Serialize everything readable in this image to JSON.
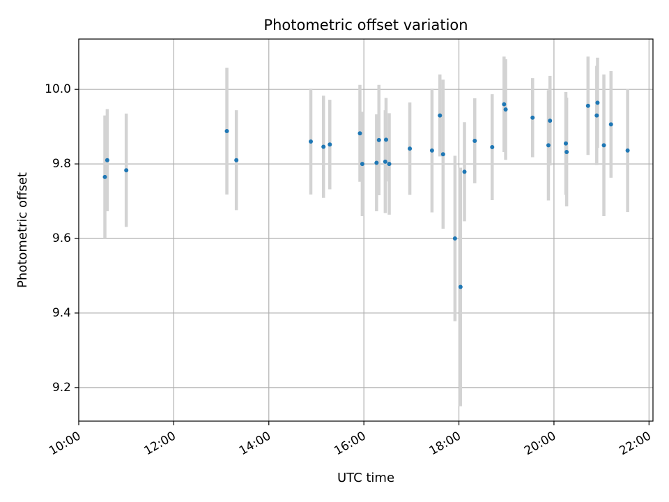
{
  "chart_data": {
    "type": "scatter",
    "title": "Photometric offset variation",
    "xlabel": "UTC time",
    "ylabel": "Photometric offset",
    "x_ticks": [
      "10:00",
      "12:00",
      "14:00",
      "16:00",
      "18:00",
      "20:00",
      "22:00"
    ],
    "y_ticks": [
      "9.2",
      "9.4",
      "9.6",
      "9.8",
      "10.0"
    ],
    "xlim": [
      "10:00",
      "22:05"
    ],
    "ylim": [
      9.11,
      10.135
    ],
    "grid": true,
    "colors": {
      "points": "#1f77b4",
      "errorbars": "#d3d3d3",
      "grid": "#b0b0b0"
    },
    "series": [
      {
        "x": [
          "10:33",
          "10:36",
          "11:00",
          "13:07",
          "13:19",
          "14:53",
          "15:09",
          "15:17",
          "15:55",
          "15:58",
          "16:16",
          "16:19",
          "16:27",
          "16:28",
          "16:32",
          "16:58",
          "17:26",
          "17:36",
          "17:40",
          "17:55",
          "18:02",
          "18:07",
          "18:20",
          "18:42",
          "18:57",
          "18:59",
          "19:33",
          "19:53",
          "19:55",
          "20:15",
          "20:16",
          "20:43",
          "20:54",
          "20:55",
          "21:03",
          "21:12",
          "21:33"
        ],
        "y": [
          9.765,
          9.81,
          9.783,
          9.888,
          9.81,
          9.86,
          9.846,
          9.852,
          9.882,
          9.8,
          9.803,
          9.864,
          9.806,
          9.865,
          9.8,
          9.841,
          9.836,
          9.93,
          9.826,
          9.6,
          9.47,
          9.779,
          9.862,
          9.845,
          9.96,
          9.946,
          9.924,
          9.85,
          9.916,
          9.855,
          9.832,
          9.956,
          9.93,
          9.964,
          9.85,
          9.906,
          9.836
        ],
        "err": [
          0.165,
          0.137,
          0.152,
          0.17,
          0.134,
          0.142,
          0.137,
          0.12,
          0.13,
          0.14,
          0.13,
          0.148,
          0.138,
          0.112,
          0.136,
          0.124,
          0.166,
          0.11,
          0.2,
          0.222,
          0.32,
          0.133,
          0.114,
          0.142,
          0.128,
          0.135,
          0.106,
          0.148,
          0.12,
          0.138,
          0.146,
          0.132,
          0.133,
          0.121,
          0.19,
          0.143,
          0.165
        ]
      }
    ]
  }
}
